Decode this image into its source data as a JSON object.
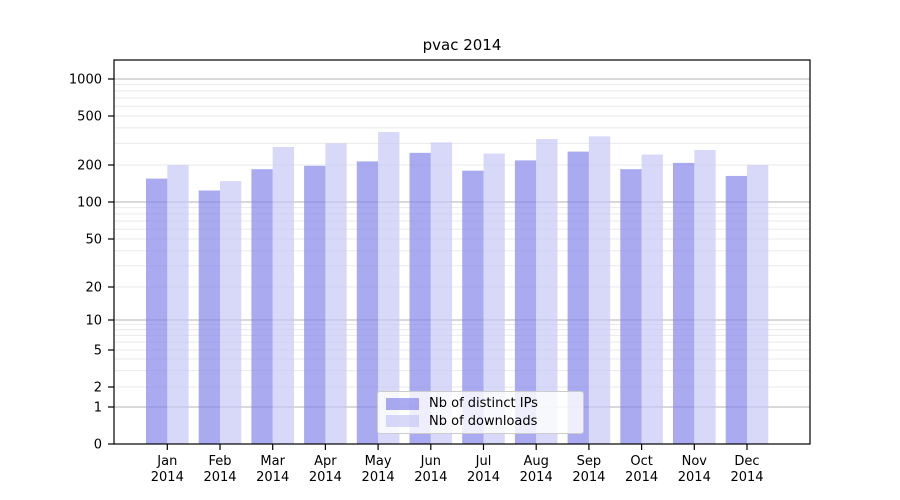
{
  "colors": {
    "bar_ips": "rgba(134,134,235,0.7)",
    "bar_downloads": "rgba(199,199,246,0.7)",
    "grid_major": "#b3b3b3",
    "grid_minor": "#eaeaea",
    "axis": "#000000"
  },
  "legend": {
    "items": [
      {
        "label": "Nb of distinct IPs",
        "series": "ips"
      },
      {
        "label": "Nb of downloads",
        "series": "downloads"
      }
    ]
  },
  "chart_data": {
    "type": "bar",
    "title": "pvac 2014",
    "categories": [
      "Jan 2014",
      "Feb 2014",
      "Mar 2014",
      "Apr 2014",
      "May 2014",
      "Jun 2014",
      "Jul 2014",
      "Aug 2014",
      "Sep 2014",
      "Oct 2014",
      "Nov 2014",
      "Dec 2014"
    ],
    "series": [
      {
        "name": "Nb of distinct IPs",
        "key": "ips",
        "values": [
          155,
          124,
          185,
          197,
          214,
          251,
          180,
          218,
          257,
          185,
          208,
          163
        ]
      },
      {
        "name": "Nb of downloads",
        "key": "downloads",
        "values": [
          200,
          148,
          280,
          300,
          370,
          305,
          248,
          325,
          342,
          243,
          265,
          200
        ]
      }
    ],
    "yscale": "symlog",
    "yticks": [
      0,
      1,
      2,
      5,
      10,
      20,
      50,
      100,
      200,
      500,
      1000
    ],
    "ylim": [
      0,
      1000
    ],
    "grid": "both",
    "legend_position": "lower center"
  }
}
